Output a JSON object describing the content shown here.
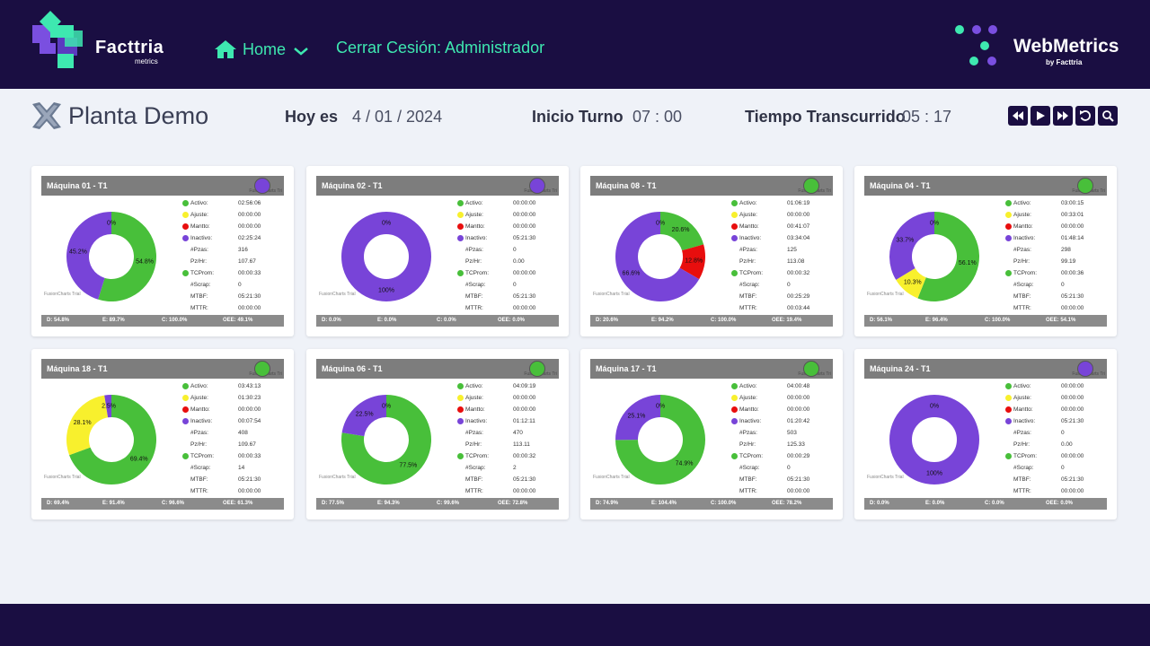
{
  "header": {
    "brand": {
      "name": "Facttria",
      "sub": "metrics"
    },
    "nav": {
      "home": "Home",
      "logout": "Cerrar Cesión: Administrador"
    },
    "webmetrics": {
      "name": "WebMetrics",
      "by": "by Facttria"
    }
  },
  "subheader": {
    "plant": "Planta Demo",
    "today_label": "Hoy es",
    "today_value": "4 / 01 / 2024",
    "shift_label": "Inicio Turno",
    "shift_value": "07 :  00",
    "elapsed_label": "Tiempo Transcurrido",
    "elapsed_value": "05 :  17"
  },
  "controls": [
    "rewind-icon",
    "play-icon",
    "fast-forward-icon",
    "refresh-icon",
    "search-icon"
  ],
  "colors": {
    "activo": "#48bf3a",
    "ajuste": "#f8f02d",
    "mantto": "#e80e0e",
    "inactivo": "#7844d8"
  },
  "stat_labels": {
    "activo": "Activo:",
    "ajuste": "Ajuste:",
    "mantto": "Mantto:",
    "inactivo": "Inactivo:",
    "pzas": "#Pzas:",
    "pzhr": "Pz/Hr:",
    "tcprom": "TCProm:",
    "scrap": "#Scrap:",
    "mtbf": "MTBF:",
    "mttr": "MTTR:"
  },
  "fc_tag": "FusionCharts Tri",
  "fc_trial": "FusionCharts Trial",
  "machines": [
    {
      "title": "Máquina 01 - T1",
      "status": "#7844d8",
      "stats": [
        "02:56:06",
        "00:00:00",
        "00:00:00",
        "02:25:24",
        "316",
        "107.67",
        "00:00:33",
        "0",
        "05:21:30",
        "00:00:00"
      ],
      "footer": {
        "d": "D: 54.8%",
        "e": "E: 89.7%",
        "c": "C: 100.0%",
        "oee": "OEE: 49.1%"
      },
      "slices": [
        {
          "key": "activo",
          "value": 54.8,
          "label": "54.8%"
        },
        {
          "key": "ajuste",
          "value": 0,
          "label": "0%"
        },
        {
          "key": "inactivo",
          "value": 45.2,
          "label": "45.2%"
        }
      ]
    },
    {
      "title": "Máquina 02 - T1",
      "status": "#7844d8",
      "stats": [
        "00:00:00",
        "00:00:00",
        "00:00:00",
        "05:21:30",
        "0",
        "0.00",
        "00:00:00",
        "0",
        "05:21:30",
        "00:00:00"
      ],
      "footer": {
        "d": "D: 0.0%",
        "e": "E: 0.0%",
        "c": "C: 0.0%",
        "oee": "OEE: 0.0%"
      },
      "slices": [
        {
          "key": "activo",
          "value": 0,
          "label": "0%"
        },
        {
          "key": "inactivo",
          "value": 100,
          "label": "100%"
        }
      ]
    },
    {
      "title": "Máquina 08 - T1",
      "status": "#48bf3a",
      "stats": [
        "01:06:19",
        "00:00:00",
        "00:41:07",
        "03:34:04",
        "125",
        "113.08",
        "00:00:32",
        "0",
        "00:25:29",
        "00:03:44"
      ],
      "footer": {
        "d": "D: 20.6%",
        "e": "E: 94.2%",
        "c": "C: 100.0%",
        "oee": "OEE: 19.4%"
      },
      "slices": [
        {
          "key": "activo",
          "value": 20.6,
          "label": "20.6%"
        },
        {
          "key": "ajuste",
          "value": 0,
          "label": "0%"
        },
        {
          "key": "mantto",
          "value": 12.8,
          "label": "12.8%"
        },
        {
          "key": "inactivo",
          "value": 66.6,
          "label": "66.6%"
        }
      ]
    },
    {
      "title": "Máquina 04 - T1",
      "status": "#48bf3a",
      "stats": [
        "03:00:15",
        "00:33:01",
        "00:00:00",
        "01:48:14",
        "298",
        "99.19",
        "00:00:36",
        "0",
        "05:21:30",
        "00:00:00"
      ],
      "footer": {
        "d": "D: 56.1%",
        "e": "E: 96.4%",
        "c": "C: 100.0%",
        "oee": "OEE: 54.1%"
      },
      "slices": [
        {
          "key": "activo",
          "value": 56.1,
          "label": "56.1%"
        },
        {
          "key": "ajuste",
          "value": 10.3,
          "label": "10.3%"
        },
        {
          "key": "mantto",
          "value": 0,
          "label": "0%"
        },
        {
          "key": "inactivo",
          "value": 33.7,
          "label": "33.7%"
        }
      ]
    },
    {
      "title": "Máquina 18 - T1",
      "status": "#48bf3a",
      "stats": [
        "03:43:13",
        "01:30:23",
        "00:00:00",
        "00:07:54",
        "408",
        "109.67",
        "00:00:33",
        "14",
        "05:21:30",
        "00:00:00"
      ],
      "footer": {
        "d": "D: 69.4%",
        "e": "E: 91.4%",
        "c": "C: 96.6%",
        "oee": "OEE: 61.3%"
      },
      "slices": [
        {
          "key": "activo",
          "value": 69.4,
          "label": "69.4%"
        },
        {
          "key": "ajuste",
          "value": 28.1,
          "label": "28.1%"
        },
        {
          "key": "inactivo",
          "value": 2.5,
          "label": "2.5%"
        }
      ]
    },
    {
      "title": "Máquina 06 - T1",
      "status": "#48bf3a",
      "stats": [
        "04:09:19",
        "00:00:00",
        "00:00:00",
        "01:12:11",
        "470",
        "113.11",
        "00:00:32",
        "2",
        "05:21:30",
        "00:00:00"
      ],
      "footer": {
        "d": "D: 77.5%",
        "e": "E: 94.3%",
        "c": "C: 99.6%",
        "oee": "OEE: 72.8%"
      },
      "slices": [
        {
          "key": "activo",
          "value": 77.5,
          "label": "77.5%"
        },
        {
          "key": "ajuste",
          "value": 0,
          "label": "0%"
        },
        {
          "key": "inactivo",
          "value": 22.5,
          "label": "22.5%"
        }
      ]
    },
    {
      "title": "Máquina 17 - T1",
      "status": "#48bf3a",
      "stats": [
        "04:00:48",
        "00:00:00",
        "00:00:00",
        "01:20:42",
        "503",
        "125.33",
        "00:00:29",
        "0",
        "05:21:30",
        "00:00:00"
      ],
      "footer": {
        "d": "D: 74.9%",
        "e": "E: 104.4%",
        "c": "C: 100.0%",
        "oee": "OEE: 78.2%"
      },
      "slices": [
        {
          "key": "activo",
          "value": 74.9,
          "label": "74.9%"
        },
        {
          "key": "ajuste",
          "value": 0,
          "label": "0%"
        },
        {
          "key": "inactivo",
          "value": 25.1,
          "label": "25.1%"
        }
      ]
    },
    {
      "title": "Máquina 24 - T1",
      "status": "#7844d8",
      "stats": [
        "00:00:00",
        "00:00:00",
        "00:00:00",
        "05:21:30",
        "0",
        "0.00",
        "00:00:00",
        "0",
        "05:21:30",
        "00:00:00"
      ],
      "footer": {
        "d": "D: 0.0%",
        "e": "E: 0.0%",
        "c": "C: 0.0%",
        "oee": "OEE: 0.0%"
      },
      "slices": [
        {
          "key": "activo",
          "value": 0,
          "label": "0%"
        },
        {
          "key": "inactivo",
          "value": 100,
          "label": "100%"
        }
      ]
    }
  ]
}
